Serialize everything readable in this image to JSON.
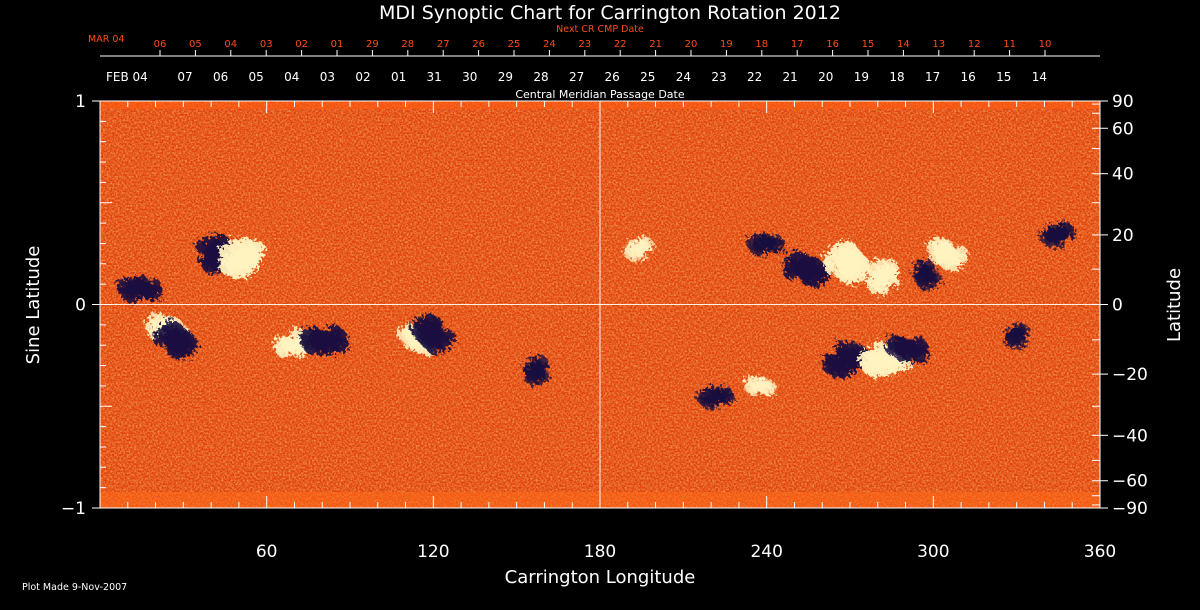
{
  "title": "MDI Synoptic Chart for Carrington Rotation 2012",
  "top_axis": {
    "label": "Next CR CMP Date",
    "start_label": "MAR 04",
    "ticks": [
      "06",
      "05",
      "04",
      "03",
      "02",
      "01",
      "29",
      "28",
      "27",
      "26",
      "25",
      "24",
      "23",
      "22",
      "21",
      "20",
      "19",
      "18",
      "17",
      "16",
      "15",
      "14",
      "13",
      "12",
      "11",
      "10"
    ]
  },
  "cmp_axis": {
    "label": "Central Meridian Passage Date",
    "start_label": "FEB 04",
    "ticks": [
      "07",
      "06",
      "05",
      "04",
      "03",
      "02",
      "01",
      "31",
      "30",
      "29",
      "28",
      "27",
      "26",
      "25",
      "24",
      "23",
      "22",
      "21",
      "20",
      "19",
      "18",
      "17",
      "16",
      "15",
      "14"
    ]
  },
  "footer": {
    "plot_made": "Plot Made  9-Nov-2007"
  },
  "colors": {
    "background": "#000000",
    "top_axis_text": "#ff4a1a",
    "map_base": "#e0400c",
    "positive_polarity": "#fff2c0",
    "negative_polarity": "#1a1040",
    "grid": "#ffffff"
  },
  "chart_data": {
    "type": "heatmap",
    "title": "MDI Synoptic Chart for Carrington Rotation 2012",
    "xlabel": "Carrington Longitude",
    "ylabel": "Sine Latitude",
    "y2label": "Latitude",
    "xlim": [
      0,
      360
    ],
    "ylim": [
      -1,
      1
    ],
    "xticks": [
      60,
      120,
      180,
      240,
      300,
      360
    ],
    "xtick_labels": [
      "60",
      "120",
      "180",
      "240",
      "300",
      "360"
    ],
    "yticks": [
      -1,
      0,
      1
    ],
    "ytick_labels": [
      "−1",
      "0",
      "1"
    ],
    "latitude_ticks": [
      90,
      60,
      40,
      20,
      0,
      -20,
      -40,
      -60,
      -90
    ],
    "latitude_tick_labels": [
      "90",
      "60",
      "40",
      "20",
      "0",
      "−20",
      "−40",
      "−60",
      "−90"
    ],
    "grid_lines": {
      "longitude": 180,
      "sine_latitude": 0
    },
    "regions": [
      {
        "lon": 15,
        "sinlat": 0.08,
        "polarity": "negative",
        "strength": 0.8
      },
      {
        "lon": 25,
        "sinlat": -0.12,
        "polarity": "positive",
        "strength": 0.8
      },
      {
        "lon": 28,
        "sinlat": -0.18,
        "polarity": "negative",
        "strength": 0.9
      },
      {
        "lon": 42,
        "sinlat": 0.24,
        "polarity": "negative",
        "strength": 0.9
      },
      {
        "lon": 51,
        "sinlat": 0.22,
        "polarity": "positive",
        "strength": 1.0
      },
      {
        "lon": 70,
        "sinlat": -0.2,
        "polarity": "positive",
        "strength": 0.8
      },
      {
        "lon": 80,
        "sinlat": -0.18,
        "polarity": "negative",
        "strength": 0.9
      },
      {
        "lon": 114,
        "sinlat": -0.17,
        "polarity": "positive",
        "strength": 0.8
      },
      {
        "lon": 119,
        "sinlat": -0.14,
        "polarity": "negative",
        "strength": 0.9
      },
      {
        "lon": 157,
        "sinlat": -0.32,
        "polarity": "negative",
        "strength": 0.6
      },
      {
        "lon": 194,
        "sinlat": 0.28,
        "polarity": "positive",
        "strength": 0.5
      },
      {
        "lon": 222,
        "sinlat": -0.45,
        "polarity": "negative",
        "strength": 0.6
      },
      {
        "lon": 238,
        "sinlat": -0.4,
        "polarity": "positive",
        "strength": 0.5
      },
      {
        "lon": 255,
        "sinlat": 0.17,
        "polarity": "negative",
        "strength": 0.9
      },
      {
        "lon": 270,
        "sinlat": 0.2,
        "polarity": "positive",
        "strength": 1.0
      },
      {
        "lon": 282,
        "sinlat": 0.13,
        "polarity": "positive",
        "strength": 0.8
      },
      {
        "lon": 268,
        "sinlat": -0.28,
        "polarity": "negative",
        "strength": 0.9
      },
      {
        "lon": 282,
        "sinlat": -0.28,
        "polarity": "positive",
        "strength": 1.0
      },
      {
        "lon": 290,
        "sinlat": -0.22,
        "polarity": "negative",
        "strength": 0.8
      },
      {
        "lon": 304,
        "sinlat": 0.25,
        "polarity": "positive",
        "strength": 0.8
      },
      {
        "lon": 297,
        "sinlat": 0.15,
        "polarity": "negative",
        "strength": 0.6
      },
      {
        "lon": 330,
        "sinlat": -0.15,
        "polarity": "negative",
        "strength": 0.5
      },
      {
        "lon": 345,
        "sinlat": 0.35,
        "polarity": "negative",
        "strength": 0.6
      },
      {
        "lon": 240,
        "sinlat": 0.3,
        "polarity": "negative",
        "strength": 0.6
      }
    ]
  }
}
